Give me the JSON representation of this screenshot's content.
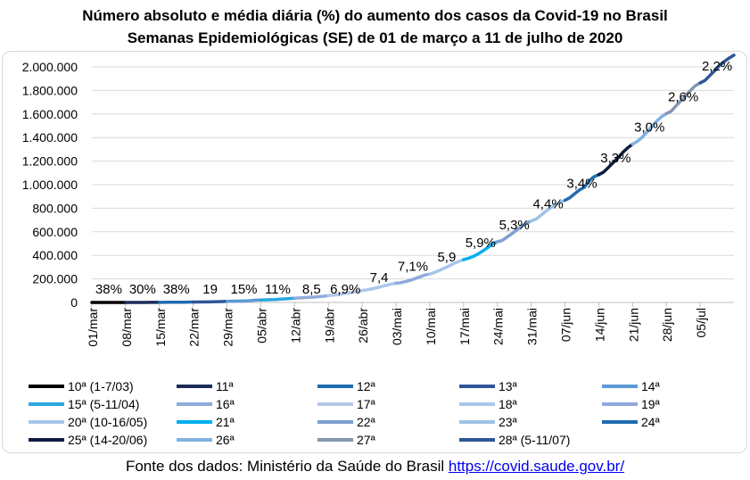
{
  "chart_data": {
    "type": "line",
    "title": "Número absoluto e média diária (%) do aumento dos casos da Covid-19 no Brasil",
    "subtitle": "Semanas Epidemiológicas (SE) de 01 de março a 11 de julho de 2020",
    "ylim": [
      0,
      2000000
    ],
    "yticks": [
      "2.000.000",
      "1.800.000",
      "1.600.000",
      "1.400.000",
      "1.200.000",
      "1.000.000",
      "800.000",
      "600.000",
      "400.000",
      "200.000",
      "0"
    ],
    "grid": true,
    "legend_position": "bottom",
    "x_tick_labels": [
      "01/mar",
      "08/mar",
      "15/mar",
      "22/mar",
      "29/mar",
      "05/abr",
      "12/abr",
      "19/abr",
      "26/abr",
      "03/mai",
      "10/mai",
      "17/mai",
      "24/mai",
      "31/mai",
      "07/jun",
      "14/jun",
      "21/jun",
      "28/jun",
      "05/jul"
    ],
    "series": [
      {
        "name": "10ª (1-7/03)",
        "color": "#000000",
        "start": 0,
        "values": [
          1,
          2,
          8,
          13,
          19,
          25,
          25,
          38
        ],
        "label": "38%"
      },
      {
        "name": "11ª",
        "color": "#1b2b59",
        "start": 7,
        "values": [
          38,
          121,
          200,
          234,
          291,
          428,
          621,
          904
        ],
        "label": "30%"
      },
      {
        "name": "12ª",
        "color": "#1f6bb0",
        "start": 14,
        "values": [
          904,
          1128,
          1546,
          1891,
          2201,
          2433,
          2915,
          3417
        ],
        "label": "38%"
      },
      {
        "name": "13ª",
        "color": "#2f5597",
        "start": 21,
        "values": [
          3417,
          3904,
          4256,
          4579,
          5717,
          6836,
          7910,
          9056
        ],
        "label": "19"
      },
      {
        "name": "14ª",
        "color": "#5b9bd5",
        "start": 28,
        "values": [
          9056,
          10278,
          11130,
          12056,
          13717,
          15927,
          19638,
          20727
        ],
        "label": "15%"
      },
      {
        "name": "15ª (5-11/04)",
        "color": "#29a7e0",
        "start": 35,
        "values": [
          20727,
          22169,
          23430,
          25262,
          28320,
          30425,
          33682,
          36599
        ],
        "label": "11%"
      },
      {
        "name": "16ª",
        "color": "#8faadc",
        "start": 42,
        "values": [
          36599,
          38654,
          40581,
          43079,
          45757,
          49492,
          52995,
          58509
        ],
        "label": "8,5"
      },
      {
        "name": "17ª",
        "color": "#b4c7e7",
        "start": 49,
        "values": [
          58509,
          61888,
          66501,
          73235,
          79361,
          85380,
          92202,
          101147
        ],
        "label": "6,9%"
      },
      {
        "name": "18ª",
        "color": "#a9c7ea",
        "start": 56,
        "values": [
          101147,
          107780,
          114715,
          125218,
          135106,
          145328,
          155939,
          162699
        ],
        "label": "7,4"
      },
      {
        "name": "19ª",
        "color": "#8ea9db",
        "start": 63,
        "values": [
          162699,
          168331,
          177589,
          188974,
          202918,
          218223,
          233142,
          241080
        ],
        "label": "7,1%"
      },
      {
        "name": "20ª (10-16/05)",
        "color": "#a6c6ea",
        "start": 70,
        "values": [
          241080,
          254220,
          271628,
          291579,
          310087,
          330890,
          347398,
          363211
        ],
        "label": "5,9"
      },
      {
        "name": "21ª",
        "color": "#00b0f0",
        "start": 77,
        "values": [
          363211,
          374898,
          391222,
          411821,
          438238,
          465166,
          498440,
          514849
        ],
        "label": "5,9%"
      },
      {
        "name": "22ª",
        "color": "#7f9fd0",
        "start": 84,
        "values": [
          514849,
          526447,
          555383,
          584016,
          614941,
          645771,
          672846,
          691758
        ],
        "label": "5,3%"
      },
      {
        "name": "23ª",
        "color": "#9dc3e6",
        "start": 91,
        "values": [
          691758,
          707412,
          739503,
          772416,
          802828,
          828810,
          850514,
          867624
        ],
        "label": "4,4%"
      },
      {
        "name": "24ª",
        "color": "#1f6bb0",
        "start": 98,
        "values": [
          867624,
          888271,
          923189,
          955377,
          978142,
          1032913,
          1067579,
          1085038
        ],
        "label": "3,4%"
      },
      {
        "name": "25ª (14-20/06)",
        "color": "#0d1b40",
        "start": 105,
        "values": [
          1085038,
          1106470,
          1145906,
          1188631,
          1228114,
          1274974,
          1313667,
          1344143
        ],
        "label": "3,3%"
      },
      {
        "name": "26ª",
        "color": "#7fb2e0",
        "start": 112,
        "values": [
          1344143,
          1368195,
          1402041,
          1448753,
          1496858,
          1539081,
          1577004,
          1603055
        ],
        "label": "3,0%"
      },
      {
        "name": "27ª",
        "color": "#8497b0",
        "start": 119,
        "values": [
          1603055,
          1623284,
          1668589,
          1713160,
          1755779,
          1800827,
          1839850,
          1864681
        ],
        "label": "2,6%"
      },
      {
        "name": "28ª (5-11/07)",
        "color": "#2f5597",
        "start": 126,
        "values": [
          1864681,
          1884967,
          1926824,
          1966748,
          2012151,
          2046328,
          2075246,
          2100000
        ],
        "label": "2,2%"
      }
    ]
  },
  "footer": {
    "source_text": "Fonte dos dados: Ministério da Saúde do Brasil ",
    "source_link": "https://covid.saude.gov.br/"
  }
}
